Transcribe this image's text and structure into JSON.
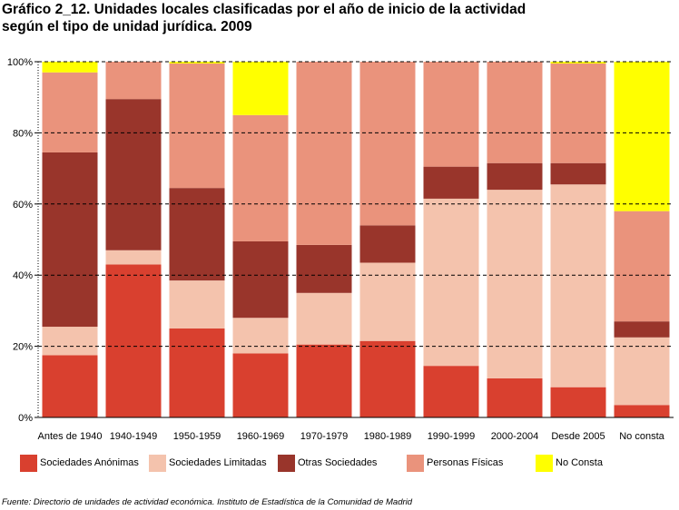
{
  "title_line1": "Gráfico 2_12. Unidades locales clasificadas por el año de inicio de la actividad",
  "title_line2": "según el tipo de unidad jurídica. 2009",
  "source": "Fuente: Directorio de unidades de actividad económica. Instituto de Estadística de la Comunidad de Madrid",
  "chart_data": {
    "type": "bar",
    "stacked": true,
    "percent_stacked": true,
    "title": "Gráfico 2_12. Unidades locales clasificadas por el año de inicio de la actividad según el tipo de unidad jurídica. 2009",
    "xlabel": "",
    "ylabel": "",
    "ylim": [
      0,
      100
    ],
    "yticks": [
      "0%",
      "20%",
      "40%",
      "60%",
      "80%",
      "100%"
    ],
    "grid": true,
    "legend_position": "bottom",
    "categories": [
      "Antes de 1940",
      "1940-1949",
      "1950-1959",
      "1960-1969",
      "1970-1979",
      "1980-1989",
      "1990-1999",
      "2000-2004",
      "Desde 2005",
      "No consta"
    ],
    "series": [
      {
        "name": "Sociedades Anónimas",
        "color": "#d9402f",
        "values": [
          17.5,
          43.0,
          25.0,
          18.0,
          20.5,
          21.5,
          14.5,
          11.0,
          8.5,
          3.5
        ]
      },
      {
        "name": "Sociedades Limitadas",
        "color": "#f4c3ad",
        "values": [
          8.0,
          4.0,
          13.5,
          10.0,
          14.5,
          22.0,
          47.0,
          53.0,
          57.0,
          19.0
        ]
      },
      {
        "name": "Otras Sociedades",
        "color": "#99352b",
        "values": [
          49.0,
          42.5,
          26.0,
          21.5,
          13.5,
          10.5,
          9.0,
          7.5,
          6.0,
          4.5
        ]
      },
      {
        "name": "Personas Físicas",
        "color": "#ea937c",
        "values": [
          22.5,
          10.5,
          35.0,
          35.5,
          51.5,
          46.0,
          29.5,
          28.5,
          28.0,
          31.0
        ]
      },
      {
        "name": "No Consta",
        "color": "#ffff00",
        "values": [
          3.0,
          0.0,
          0.5,
          15.0,
          0.0,
          0.0,
          0.0,
          0.0,
          0.5,
          42.0
        ]
      }
    ]
  }
}
